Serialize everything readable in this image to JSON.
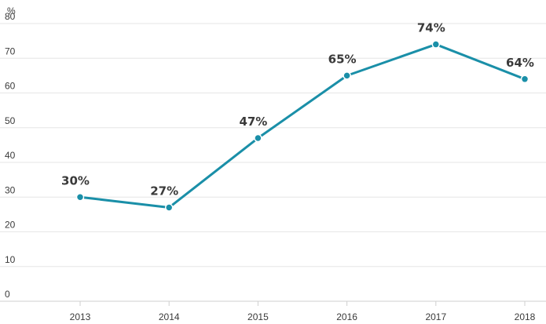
{
  "chart_data": {
    "type": "line",
    "title": "",
    "xlabel": "",
    "ylabel": "%",
    "categories": [
      "2013",
      "2014",
      "2015",
      "2016",
      "2017",
      "2018"
    ],
    "series": [
      {
        "values": [
          30,
          27,
          47,
          65,
          74,
          64
        ]
      }
    ],
    "data_labels": [
      "30%",
      "27%",
      "47%",
      "65%",
      "74%",
      "64%"
    ],
    "ylim": [
      0,
      80
    ],
    "yticks": [
      "0",
      "10",
      "20",
      "30",
      "40",
      "50",
      "60",
      "70",
      "80"
    ],
    "grid": true,
    "line_color": "#1a8fa8"
  }
}
